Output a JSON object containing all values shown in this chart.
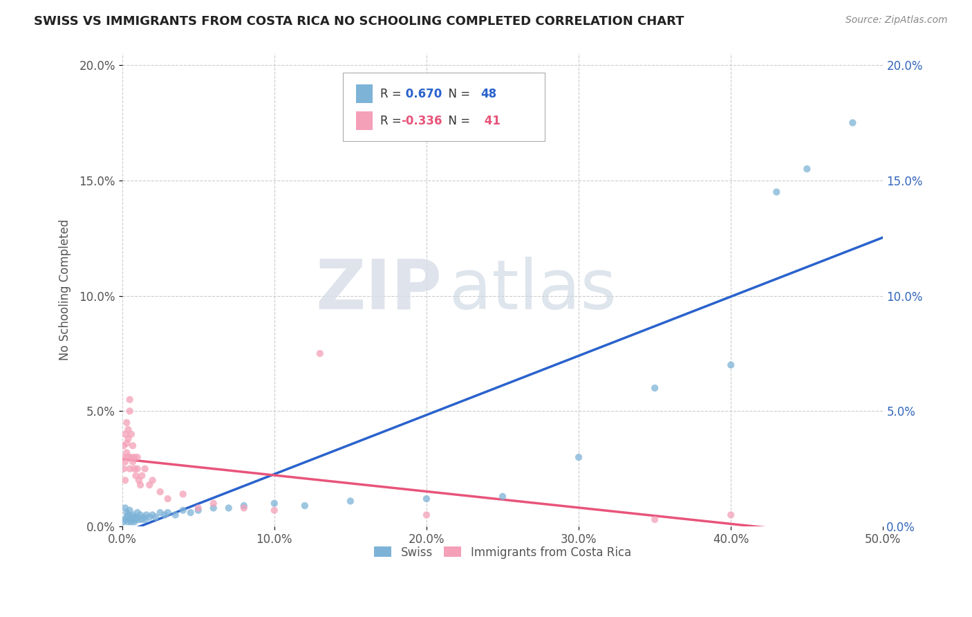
{
  "title": "SWISS VS IMMIGRANTS FROM COSTA RICA NO SCHOOLING COMPLETED CORRELATION CHART",
  "source": "Source: ZipAtlas.com",
  "ylabel": "No Schooling Completed",
  "xlim": [
    0.0,
    0.5
  ],
  "ylim": [
    0.0,
    0.205
  ],
  "yticks": [
    0.0,
    0.05,
    0.1,
    0.15,
    0.2
  ],
  "xticks": [
    0.0,
    0.1,
    0.2,
    0.3,
    0.4,
    0.5
  ],
  "r_swiss": 0.67,
  "n_swiss": 48,
  "r_cr": -0.336,
  "n_cr": 41,
  "swiss_color": "#7eb3d8",
  "cr_color": "#f4a0b8",
  "swiss_line_color": "#2962cc",
  "cr_line_color": "#e8547a",
  "watermark_zip": "ZIP",
  "watermark_atlas": "atlas",
  "swiss_x": [
    0.001,
    0.002,
    0.002,
    0.003,
    0.003,
    0.004,
    0.004,
    0.005,
    0.005,
    0.006,
    0.006,
    0.007,
    0.007,
    0.008,
    0.008,
    0.009,
    0.01,
    0.01,
    0.011,
    0.012,
    0.013,
    0.014,
    0.015,
    0.016,
    0.018,
    0.02,
    0.022,
    0.025,
    0.028,
    0.03,
    0.035,
    0.04,
    0.045,
    0.05,
    0.06,
    0.07,
    0.08,
    0.1,
    0.12,
    0.15,
    0.2,
    0.25,
    0.3,
    0.35,
    0.4,
    0.43,
    0.45,
    0.48
  ],
  "swiss_y": [
    0.002,
    0.003,
    0.008,
    0.004,
    0.006,
    0.002,
    0.005,
    0.003,
    0.007,
    0.002,
    0.004,
    0.003,
    0.005,
    0.002,
    0.004,
    0.003,
    0.004,
    0.006,
    0.003,
    0.005,
    0.003,
    0.004,
    0.003,
    0.005,
    0.004,
    0.005,
    0.004,
    0.006,
    0.005,
    0.006,
    0.005,
    0.007,
    0.006,
    0.007,
    0.008,
    0.008,
    0.009,
    0.01,
    0.009,
    0.011,
    0.012,
    0.013,
    0.03,
    0.06,
    0.07,
    0.145,
    0.155,
    0.175
  ],
  "cr_x": [
    0.001,
    0.001,
    0.001,
    0.002,
    0.002,
    0.002,
    0.003,
    0.003,
    0.003,
    0.004,
    0.004,
    0.004,
    0.005,
    0.005,
    0.005,
    0.006,
    0.006,
    0.007,
    0.007,
    0.008,
    0.008,
    0.009,
    0.01,
    0.01,
    0.011,
    0.012,
    0.013,
    0.015,
    0.018,
    0.02,
    0.025,
    0.03,
    0.04,
    0.05,
    0.06,
    0.08,
    0.1,
    0.13,
    0.2,
    0.35,
    0.4
  ],
  "cr_y": [
    0.03,
    0.025,
    0.035,
    0.028,
    0.04,
    0.02,
    0.032,
    0.036,
    0.045,
    0.03,
    0.038,
    0.042,
    0.025,
    0.05,
    0.055,
    0.03,
    0.04,
    0.028,
    0.035,
    0.025,
    0.03,
    0.022,
    0.025,
    0.03,
    0.02,
    0.018,
    0.022,
    0.025,
    0.018,
    0.02,
    0.015,
    0.012,
    0.014,
    0.008,
    0.01,
    0.008,
    0.007,
    0.075,
    0.005,
    0.003,
    0.005
  ]
}
